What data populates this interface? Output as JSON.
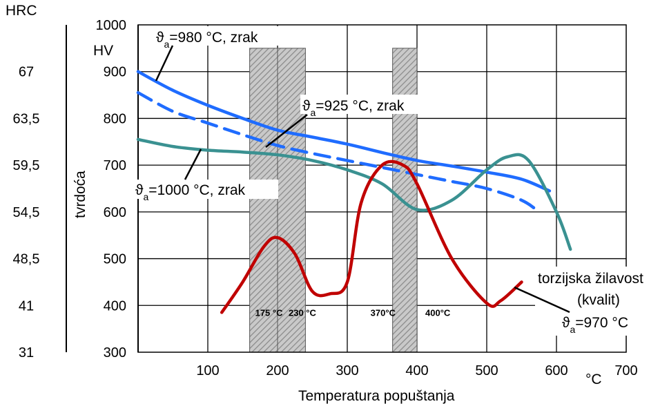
{
  "chart_data": {
    "type": "line",
    "xlabel": "Temperatura popuštanja",
    "xunit": "°C",
    "ylabel": "tvrdoća",
    "y_unit_hv": "HV",
    "y_unit_hrc": "HRC",
    "xlim": [
      0,
      700
    ],
    "ylim": [
      300,
      1000
    ],
    "x_ticks": [
      "100",
      "200",
      "300",
      "400",
      "500",
      "600",
      "700"
    ],
    "hv_ticks": [
      "1000",
      "900",
      "800",
      "700",
      "600",
      "500",
      "400",
      "300"
    ],
    "hrc_ticks": [
      "67",
      "63,5",
      "59,5",
      "54,5",
      "48,5",
      "41",
      "31"
    ],
    "grid": true,
    "bands": [
      {
        "label": "175 °C",
        "x_start": 160,
        "x_end": 200,
        "y_top": 950
      },
      {
        "label": "230 °C",
        "x_start": 200,
        "x_end": 240,
        "y_top": 950
      },
      {
        "label": "370°C",
        "x_start": 365,
        "x_end": 400,
        "y_top": 950
      },
      {
        "label": "400°C",
        "x_start": 400,
        "x_end": 400,
        "y_top": 950
      }
    ],
    "series": [
      {
        "name": "ϑa=980 °C, zrak",
        "label_main": "ϑ",
        "label_sub": "a",
        "label_rest": "=980 °C, zrak",
        "color": "#1f6cff",
        "dash": false,
        "x": [
          0,
          50,
          100,
          150,
          200,
          250,
          300,
          350,
          400,
          450,
          500,
          550,
          590
        ],
        "y": [
          900,
          860,
          828,
          800,
          775,
          760,
          745,
          727,
          710,
          698,
          685,
          670,
          645
        ]
      },
      {
        "name": "ϑa=925 °C, zrak",
        "label_main": "ϑ",
        "label_sub": "a",
        "label_rest": "=925 °C, zrak",
        "color": "#1f6cff",
        "dash": true,
        "x": [
          0,
          50,
          100,
          150,
          200,
          250,
          300,
          350,
          400,
          450,
          500,
          550,
          575
        ],
        "y": [
          855,
          815,
          790,
          765,
          742,
          725,
          710,
          695,
          680,
          665,
          650,
          625,
          600
        ]
      },
      {
        "name": "ϑa=1000 °C, zrak",
        "label_main": "ϑ",
        "label_sub": "a",
        "label_rest": "=1000 °C, zrak",
        "color": "#3a9191",
        "dash": false,
        "x": [
          0,
          50,
          100,
          150,
          200,
          250,
          300,
          350,
          400,
          450,
          500,
          530,
          560,
          600,
          620
        ],
        "y": [
          755,
          740,
          732,
          728,
          722,
          710,
          690,
          660,
          605,
          625,
          690,
          718,
          710,
          600,
          520
        ]
      },
      {
        "name": "torzijska žilavost (kvalit) ϑa=970 °C",
        "label_line1": "torzijska žilavost",
        "label_line2": "(kvalit)",
        "label_main": "ϑ",
        "label_sub": "a",
        "label_rest": "=970 °C",
        "color": "#c00000",
        "dash": false,
        "x": [
          120,
          150,
          180,
          200,
          225,
          250,
          275,
          300,
          320,
          350,
          380,
          400,
          450,
          500,
          520,
          550
        ],
        "y": [
          385,
          450,
          525,
          545,
          510,
          430,
          425,
          450,
          620,
          700,
          700,
          660,
          500,
          405,
          410,
          450
        ]
      }
    ]
  }
}
